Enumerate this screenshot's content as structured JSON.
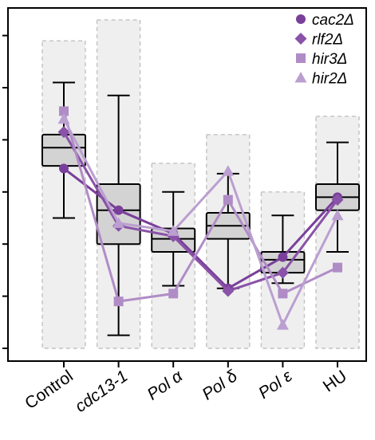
{
  "chart_data": {
    "type": "box",
    "categories": [
      "Control",
      "cdc13-1",
      "Pol α",
      "Pol δ",
      "Pol ε",
      "HU"
    ],
    "italic_categories": [
      false,
      true,
      true,
      true,
      true,
      false
    ],
    "ylim": [
      0,
      13
    ],
    "grid": false,
    "title": "",
    "xlabel": "",
    "ylabel": "",
    "background_range": {
      "lower": [
        0,
        0,
        0,
        0,
        0,
        0
      ],
      "upper": [
        11.8,
        12.6,
        7.1,
        8.2,
        6,
        8.9
      ]
    },
    "boxplots": [
      {
        "min": 5,
        "q1": 7,
        "median": 7.7,
        "q3": 8.2,
        "max": 10.2
      },
      {
        "min": 0.5,
        "q1": 4,
        "median": 5.3,
        "q3": 6.3,
        "max": 9.7
      },
      {
        "min": 2.4,
        "q1": 3.7,
        "median": 4.2,
        "q3": 4.6,
        "max": 6
      },
      {
        "min": 2.3,
        "q1": 4.2,
        "median": 4.7,
        "q3": 5.2,
        "max": 6.7
      },
      {
        "min": 2.5,
        "q1": 2.9,
        "median": 3.4,
        "q3": 3.7,
        "max": 5.1
      },
      {
        "min": 3.7,
        "q1": 5.3,
        "median": 5.8,
        "q3": 6.3,
        "max": 7.9
      }
    ],
    "series": [
      {
        "name": "cac2Δ",
        "marker": "circle",
        "color": "#7a3f9a",
        "values": [
          6.9,
          5.3,
          4.4,
          2.3,
          3.5,
          5.8
        ]
      },
      {
        "name": "rlf2Δ",
        "marker": "diamond",
        "color": "#8a52a8",
        "values": [
          8.3,
          4.7,
          4.3,
          2.2,
          2.9,
          5.7
        ]
      },
      {
        "name": "hir3Δ",
        "marker": "square",
        "color": "#b08cc6",
        "values": [
          9.1,
          1.8,
          2.1,
          5.7,
          2.1,
          3.1
        ]
      },
      {
        "name": "hir2Δ",
        "marker": "triangle",
        "color": "#bb9fd0",
        "values": [
          8.8,
          4.8,
          4.5,
          6.8,
          0.9,
          5.1
        ]
      }
    ],
    "legend": {
      "position": "top-right"
    }
  }
}
